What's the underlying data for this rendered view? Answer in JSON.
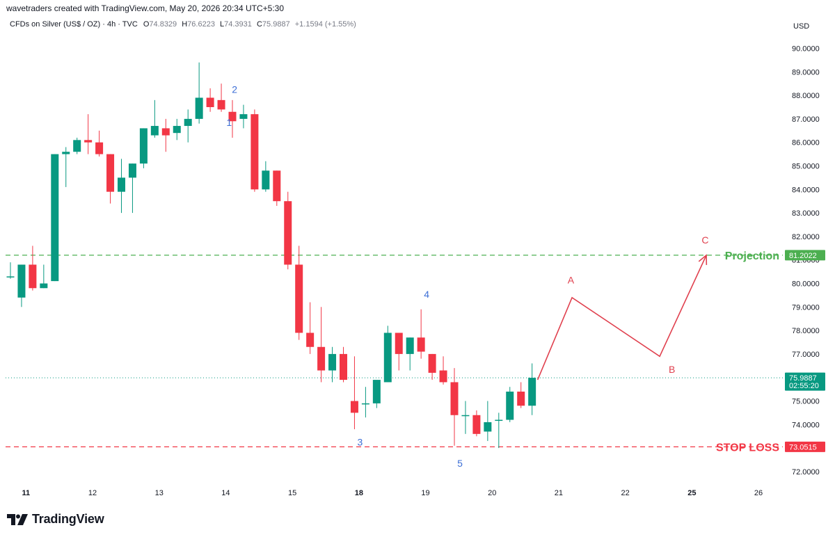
{
  "header": {
    "credit": "wavetraders created with TradingView.com, May 20, 2026 20:34 UTC+5:30",
    "symbol": "CFDs on Silver (US$ / OZ) · 4h · TVC",
    "o_label": "O",
    "o_value": "74.8329",
    "h_label": "H",
    "h_value": "76.6223",
    "l_label": "L",
    "l_value": "74.3931",
    "c_label": "C",
    "c_value": "75.9887",
    "change": "+1.1594 (+1.55%)",
    "currency": "USD"
  },
  "brand": {
    "text": "TradingView",
    "icon": "tradingview-logo-icon"
  },
  "colors": {
    "up": "#089981",
    "down": "#f23645",
    "projection": "#4caf50",
    "stop": "#f23645",
    "wave": "#3d6fd6",
    "abc": "#e0404e"
  },
  "chart_data": {
    "type": "candlestick",
    "title": "CFDs on Silver (US$ / OZ) · 4h · TVC",
    "yaxis": {
      "label": "USD",
      "range": [
        71.4,
        90.9
      ],
      "ticks": [
        "72.0000",
        "73.0000",
        "74.0000",
        "75.0000",
        "76.0000",
        "77.0000",
        "78.0000",
        "79.0000",
        "80.0000",
        "81.0000",
        "82.0000",
        "83.0000",
        "84.0000",
        "85.0000",
        "86.0000",
        "87.0000",
        "88.0000",
        "89.0000",
        "90.0000"
      ]
    },
    "xaxis": {
      "ticks": [
        {
          "label": "11",
          "i": 1.4,
          "bold": true
        },
        {
          "label": "12",
          "i": 7.4
        },
        {
          "label": "13",
          "i": 13.4
        },
        {
          "label": "14",
          "i": 19.4
        },
        {
          "label": "15",
          "i": 25.4
        },
        {
          "label": "18",
          "i": 31.4,
          "bold": true
        },
        {
          "label": "19",
          "i": 37.4
        },
        {
          "label": "20",
          "i": 43.4
        },
        {
          "label": "21",
          "i": 49.4
        },
        {
          "label": "22",
          "i": 55.4
        },
        {
          "label": "25",
          "i": 61.4,
          "bold": true
        },
        {
          "label": "26",
          "i": 67.4
        }
      ]
    },
    "candles": [
      {
        "o": 80.3,
        "h": 80.9,
        "l": 80.2,
        "c": 80.3
      },
      {
        "o": 79.4,
        "h": 80.8,
        "l": 79.0,
        "c": 80.8
      },
      {
        "o": 80.8,
        "h": 81.6,
        "l": 79.7,
        "c": 79.8
      },
      {
        "o": 79.8,
        "h": 80.8,
        "l": 79.8,
        "c": 80.0
      },
      {
        "o": 80.1,
        "h": 85.5,
        "l": 80.1,
        "c": 85.5
      },
      {
        "o": 85.5,
        "h": 85.8,
        "l": 84.1,
        "c": 85.6
      },
      {
        "o": 85.6,
        "h": 86.2,
        "l": 85.5,
        "c": 86.1
      },
      {
        "o": 86.1,
        "h": 87.2,
        "l": 85.5,
        "c": 86.0
      },
      {
        "o": 86.0,
        "h": 86.5,
        "l": 85.4,
        "c": 85.5
      },
      {
        "o": 85.5,
        "h": 85.5,
        "l": 83.4,
        "c": 83.9
      },
      {
        "o": 83.9,
        "h": 85.3,
        "l": 83.0,
        "c": 84.5
      },
      {
        "o": 84.5,
        "h": 85.1,
        "l": 83.0,
        "c": 85.1
      },
      {
        "o": 85.1,
        "h": 86.6,
        "l": 84.9,
        "c": 86.6
      },
      {
        "o": 86.3,
        "h": 87.8,
        "l": 86.2,
        "c": 86.7
      },
      {
        "o": 86.6,
        "h": 87.0,
        "l": 85.6,
        "c": 86.3
      },
      {
        "o": 86.4,
        "h": 87.0,
        "l": 86.1,
        "c": 86.7
      },
      {
        "o": 86.7,
        "h": 87.4,
        "l": 86.0,
        "c": 87.0
      },
      {
        "o": 87.0,
        "h": 89.4,
        "l": 86.8,
        "c": 87.9
      },
      {
        "o": 87.9,
        "h": 88.3,
        "l": 87.3,
        "c": 87.5
      },
      {
        "o": 87.8,
        "h": 88.5,
        "l": 87.3,
        "c": 87.4
      },
      {
        "o": 87.3,
        "h": 87.8,
        "l": 86.2,
        "c": 86.9
      },
      {
        "o": 87.0,
        "h": 87.6,
        "l": 86.6,
        "c": 87.2
      },
      {
        "o": 87.2,
        "h": 87.4,
        "l": 83.9,
        "c": 84.0
      },
      {
        "o": 84.0,
        "h": 85.2,
        "l": 83.9,
        "c": 84.8
      },
      {
        "o": 84.8,
        "h": 84.8,
        "l": 83.3,
        "c": 83.5
      },
      {
        "o": 83.5,
        "h": 83.9,
        "l": 80.6,
        "c": 80.8
      },
      {
        "o": 80.8,
        "h": 81.6,
        "l": 77.6,
        "c": 77.9
      },
      {
        "o": 77.9,
        "h": 79.2,
        "l": 77.0,
        "c": 77.3
      },
      {
        "o": 77.3,
        "h": 79.0,
        "l": 75.8,
        "c": 76.3
      },
      {
        "o": 76.3,
        "h": 77.3,
        "l": 75.8,
        "c": 77.0
      },
      {
        "o": 77.0,
        "h": 77.3,
        "l": 75.8,
        "c": 75.9
      },
      {
        "o": 75.0,
        "h": 76.9,
        "l": 73.8,
        "c": 74.5
      },
      {
        "o": 74.9,
        "h": 75.6,
        "l": 74.3,
        "c": 74.9
      },
      {
        "o": 74.9,
        "h": 75.8,
        "l": 74.7,
        "c": 75.9
      },
      {
        "o": 75.8,
        "h": 78.2,
        "l": 75.8,
        "c": 77.9
      },
      {
        "o": 77.9,
        "h": 77.9,
        "l": 76.3,
        "c": 77.0
      },
      {
        "o": 77.0,
        "h": 77.7,
        "l": 76.3,
        "c": 77.7
      },
      {
        "o": 77.7,
        "h": 78.9,
        "l": 76.8,
        "c": 77.1
      },
      {
        "o": 77.0,
        "h": 77.0,
        "l": 75.9,
        "c": 76.2
      },
      {
        "o": 76.3,
        "h": 76.9,
        "l": 75.7,
        "c": 75.8
      },
      {
        "o": 75.8,
        "h": 76.4,
        "l": 73.1,
        "c": 74.4
      },
      {
        "o": 74.4,
        "h": 75.0,
        "l": 73.6,
        "c": 74.4
      },
      {
        "o": 74.4,
        "h": 74.6,
        "l": 73.5,
        "c": 73.6
      },
      {
        "o": 73.7,
        "h": 75.0,
        "l": 73.3,
        "c": 74.1
      },
      {
        "o": 74.2,
        "h": 74.5,
        "l": 73.0,
        "c": 74.2
      },
      {
        "o": 74.2,
        "h": 75.6,
        "l": 74.1,
        "c": 75.4
      },
      {
        "o": 75.4,
        "h": 75.8,
        "l": 74.7,
        "c": 74.8
      },
      {
        "o": 74.8,
        "h": 76.6,
        "l": 74.4,
        "c": 75.9887
      }
    ],
    "lines": [
      {
        "name": "Projection",
        "price": 81.2022,
        "style": "dashed",
        "color": "#4caf50",
        "price_label": "81.2022"
      },
      {
        "name": "STOP LOSS",
        "price": 73.0515,
        "style": "dashed",
        "color": "#f23645",
        "price_label": "73.0515"
      }
    ],
    "last_price": {
      "price": 75.9887,
      "label": "75.9887",
      "countdown": "02:55:20"
    },
    "wave_labels": [
      {
        "text": "1",
        "i": 19.7,
        "price": 86.7
      },
      {
        "text": "2",
        "i": 20.2,
        "price": 88.1
      },
      {
        "text": "3",
        "i": 31.5,
        "price": 73.1
      },
      {
        "text": "4",
        "i": 37.5,
        "price": 79.4
      },
      {
        "text": "5",
        "i": 40.5,
        "price": 72.2
      }
    ],
    "abc_path": [
      {
        "i": 47.5,
        "price": 75.9
      },
      {
        "i": 50.6,
        "price": 79.4
      },
      {
        "i": 58.5,
        "price": 76.9
      },
      {
        "i": 62.7,
        "price": 81.2
      }
    ],
    "abc_labels": [
      {
        "text": "A",
        "i": 50.5,
        "price": 80.0
      },
      {
        "text": "B",
        "i": 59.6,
        "price": 76.2
      },
      {
        "text": "C",
        "i": 62.6,
        "price": 81.7
      }
    ]
  }
}
